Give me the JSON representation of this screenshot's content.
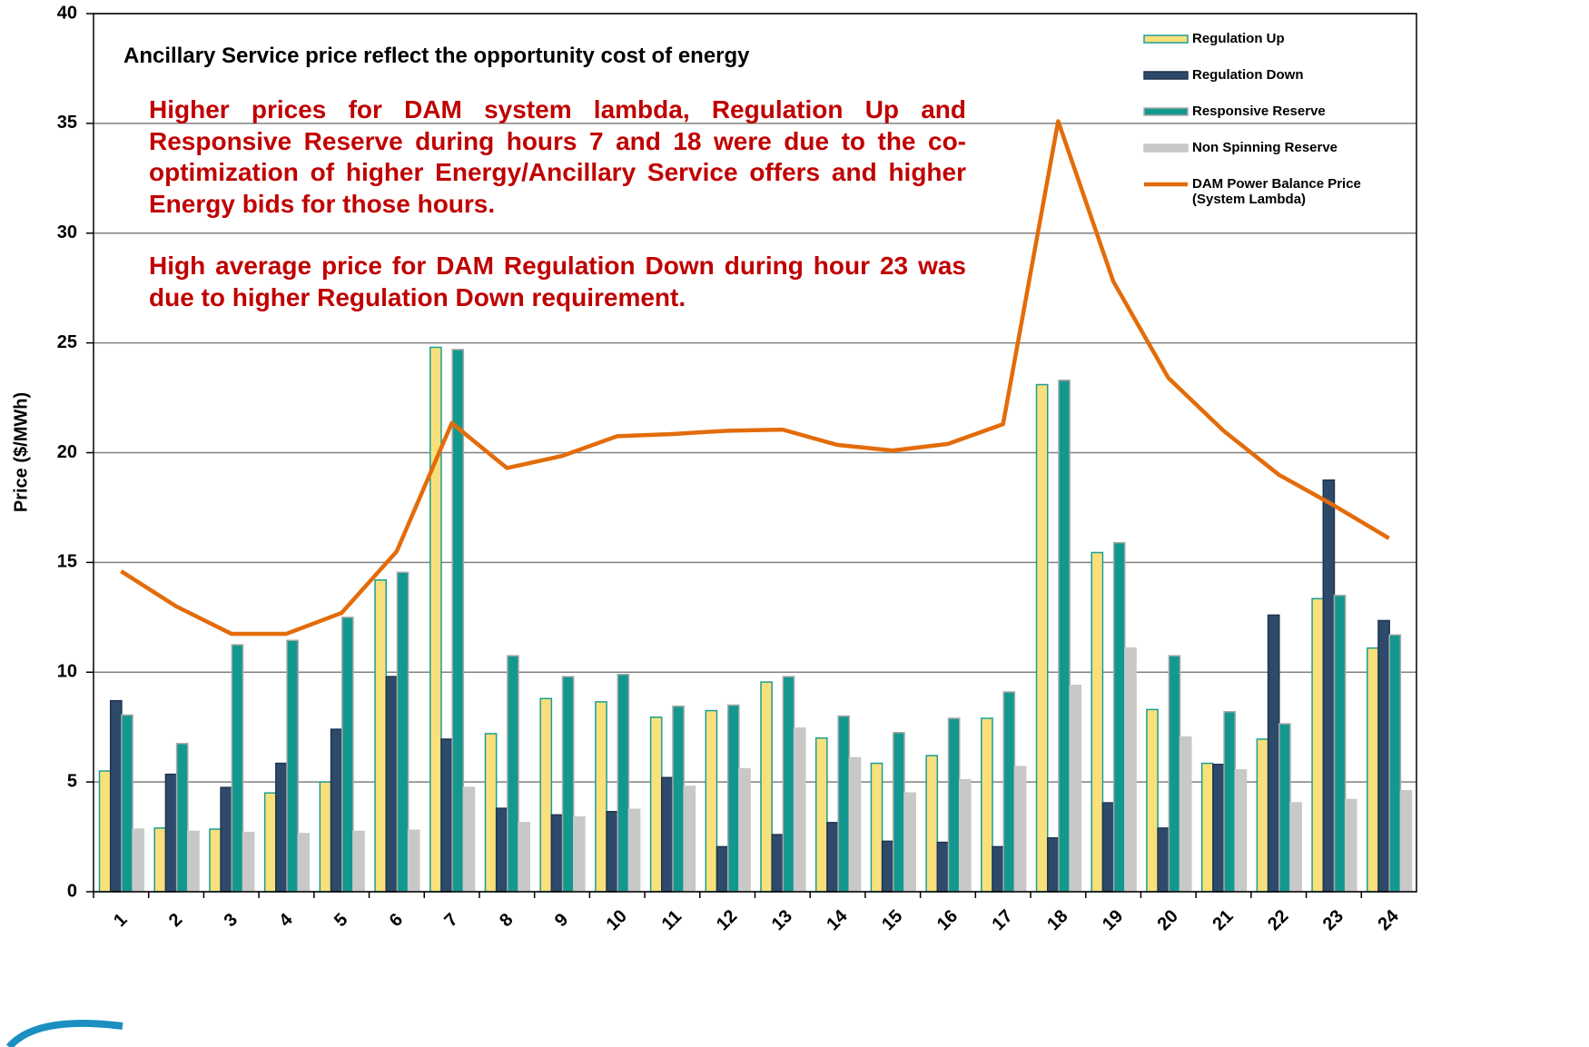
{
  "chart_data": {
    "type": "bar_line",
    "title": "Ancillary Service price reflect the opportunity cost of energy",
    "annotations": [
      "Higher prices for DAM system lambda, Regulation Up and Responsive Reserve during hours 7 and 18 were due to the co-optimization of higher Energy/Ancillary Service offers and higher Energy bids for those hours.",
      "High average price for DAM Regulation Down during hour 23 was due to higher Regulation Down requirement."
    ],
    "y_label": "Price ($/MWh)",
    "categories": [
      "1",
      "2",
      "3",
      "4",
      "5",
      "6",
      "7",
      "8",
      "9",
      "10",
      "11",
      "12",
      "13",
      "14",
      "15",
      "16",
      "17",
      "18",
      "19",
      "20",
      "21",
      "22",
      "23",
      "24"
    ],
    "series": [
      {
        "name": "Regulation Up",
        "type": "bar",
        "color": "#f9e07a",
        "edge": "#1a9e97",
        "values": [
          5.5,
          2.9,
          2.85,
          4.5,
          5.0,
          14.2,
          24.8,
          7.2,
          8.8,
          8.65,
          7.95,
          8.25,
          9.55,
          7.0,
          5.85,
          6.2,
          7.9,
          23.1,
          15.45,
          8.3,
          5.85,
          6.95,
          13.35,
          11.1
        ]
      },
      {
        "name": "Regulation Down",
        "type": "bar",
        "color": "#2e4a6b",
        "edge": "#1f3550",
        "values": [
          8.7,
          5.35,
          4.75,
          5.85,
          7.4,
          9.8,
          6.95,
          3.8,
          3.5,
          3.65,
          5.2,
          2.05,
          2.6,
          3.15,
          2.3,
          2.25,
          2.05,
          2.45,
          4.05,
          2.9,
          5.8,
          12.6,
          18.75,
          12.35
        ]
      },
      {
        "name": "Responsive Reserve",
        "type": "bar",
        "color": "#13988f",
        "edge": "#a9a9a9",
        "values": [
          8.05,
          6.75,
          11.25,
          11.45,
          12.5,
          14.55,
          24.7,
          10.75,
          9.8,
          9.9,
          8.45,
          8.5,
          9.8,
          8.0,
          7.25,
          7.9,
          9.1,
          23.3,
          15.9,
          10.75,
          8.2,
          7.65,
          13.5,
          11.7
        ]
      },
      {
        "name": "Non Spinning Reserve",
        "type": "bar",
        "color": "#c8c8c8",
        "edge": "#c8c8c8",
        "values": [
          2.85,
          2.75,
          2.7,
          2.65,
          2.75,
          2.8,
          4.75,
          3.15,
          3.4,
          3.75,
          4.8,
          5.6,
          7.45,
          6.1,
          4.5,
          5.1,
          5.7,
          9.4,
          11.1,
          7.05,
          5.55,
          4.05,
          4.2,
          4.6
        ]
      },
      {
        "name": "DAM Power Balance Price (System Lambda)",
        "type": "line",
        "color": "#e36c0a",
        "values": [
          14.6,
          13.0,
          11.75,
          11.75,
          12.7,
          15.5,
          21.35,
          19.3,
          19.85,
          20.75,
          20.85,
          21.0,
          21.05,
          20.35,
          20.1,
          20.4,
          21.3,
          35.1,
          27.8,
          23.4,
          21.0,
          19.0,
          17.6,
          16.1
        ]
      }
    ],
    "ylim": [
      0,
      40
    ],
    "yticks": [
      0,
      5,
      10,
      15,
      20,
      25,
      30,
      35,
      40
    ],
    "grid": true,
    "legend": "top-right"
  }
}
